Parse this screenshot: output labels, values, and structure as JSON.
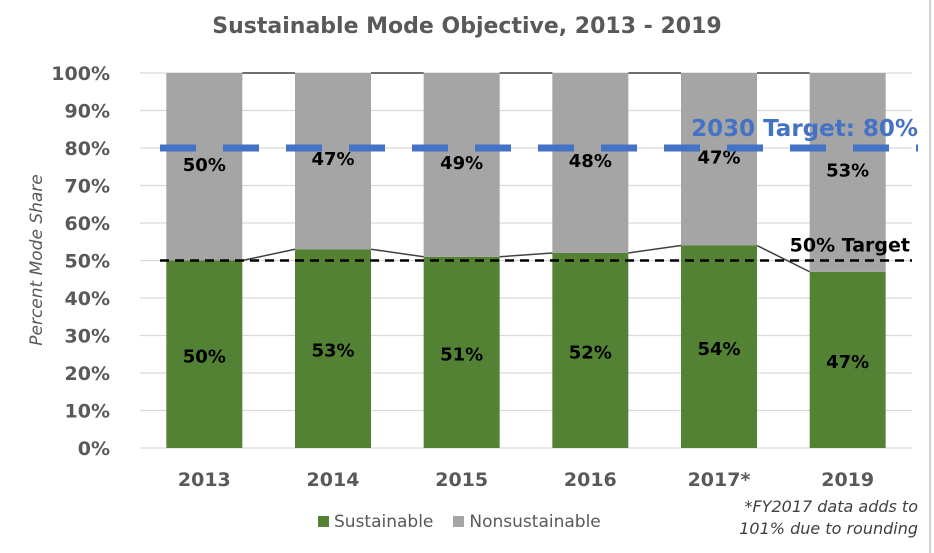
{
  "chart_data": {
    "type": "bar",
    "stacked": true,
    "title": "Sustainable Mode Objective, 2013 - 2019",
    "ylabel": "Percent Mode Share",
    "xlabel": "",
    "ylim": [
      0,
      100
    ],
    "yticks": [
      "0%",
      "10%",
      "20%",
      "30%",
      "40%",
      "50%",
      "60%",
      "70%",
      "80%",
      "90%",
      "100%"
    ],
    "categories": [
      "2013",
      "2014",
      "2015",
      "2016",
      "2017*",
      "2019"
    ],
    "series": [
      {
        "name": "Sustainable",
        "color": "#548235",
        "values": [
          50,
          53,
          51,
          52,
          54,
          47
        ],
        "labels": [
          "50%",
          "53%",
          "51%",
          "52%",
          "54%",
          "47%"
        ]
      },
      {
        "name": "Nonsustainable",
        "color": "#a5a5a5",
        "values": [
          50,
          47,
          49,
          48,
          47,
          53
        ],
        "labels": [
          "50%",
          "47%",
          "49%",
          "48%",
          "47%",
          "53%"
        ]
      }
    ],
    "grid": true,
    "legend_position": "bottom",
    "reference_lines": [
      {
        "label": "2030 Target: 80%",
        "value": 80,
        "color": "#4472c4",
        "style": "dashed"
      },
      {
        "label": "50% Target",
        "value": 50,
        "color": "#000000",
        "style": "dashed"
      }
    ],
    "footnote": [
      "*FY2017 data adds to",
      "101% due to rounding"
    ]
  }
}
